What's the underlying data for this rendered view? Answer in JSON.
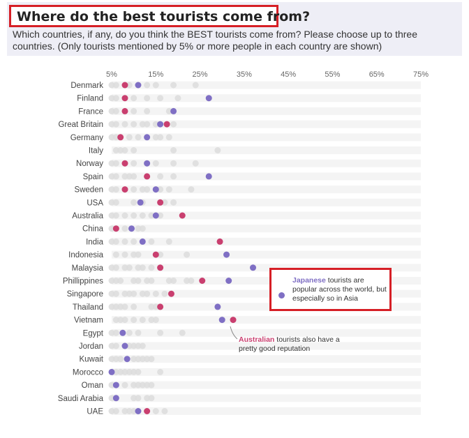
{
  "header": {
    "title": "Where do the best tourists come from?",
    "subtitle": "Which countries, if any, do you think the BEST tourists come from? Please choose up to three countries. (Only tourists mentioned by 5% or more people in each country are shown)"
  },
  "annotations": {
    "japanese": {
      "highlight": "Japanese",
      "text": " tourists are popular across the world, but especially so in Asia"
    },
    "australian": {
      "highlight": "Australian",
      "text": " tourists also have a pretty good reputation"
    }
  },
  "colors": {
    "japanese": "#7f6fc4",
    "australian": "#c93f6f",
    "other": "#dcdcdc",
    "row_band": "#f4f4f4"
  },
  "chart_data": {
    "type": "scatter",
    "orientation": "horizontal",
    "x_ticks": [
      "5%",
      "15%",
      "25%",
      "35%",
      "45%",
      "55%",
      "65%",
      "75%"
    ],
    "xlim": [
      5,
      75
    ],
    "categories": [
      "Denmark",
      "Finland",
      "France",
      "Great Britain",
      "Germany",
      "Italy",
      "Norway",
      "Spain",
      "Sweden",
      "USA",
      "Australia",
      "China",
      "India",
      "Indonesia",
      "Malaysia",
      "Phillippines",
      "Singapore",
      "Thailand",
      "Vietnam",
      "Egypt",
      "Jordan",
      "Kuwait",
      "Morocco",
      "Oman",
      "Saudi Arabia",
      "UAE"
    ],
    "series": [
      {
        "name": "Australian",
        "values": [
          8,
          8,
          8,
          17.5,
          7,
          null,
          8,
          13,
          8,
          16,
          21,
          6,
          29.5,
          15,
          16,
          25.5,
          18.5,
          16,
          32.5,
          null,
          null,
          null,
          null,
          null,
          null,
          13
        ]
      },
      {
        "name": "Japanese",
        "values": [
          11,
          27,
          19,
          16,
          13,
          null,
          13,
          27,
          15,
          11.5,
          15,
          9.5,
          12,
          31,
          37,
          31.5,
          null,
          29,
          30,
          7.5,
          8,
          8.5,
          5,
          6,
          6,
          11
        ]
      }
    ],
    "others": [
      [
        5,
        6,
        9,
        13,
        15,
        19,
        24
      ],
      [
        5,
        6,
        10,
        13,
        16,
        20
      ],
      [
        5,
        6,
        10,
        13,
        18
      ],
      [
        5,
        6,
        8,
        10,
        12,
        13,
        15,
        19
      ],
      [
        5,
        6,
        9,
        11,
        15,
        16,
        18
      ],
      [
        6,
        7,
        8,
        10,
        19,
        29
      ],
      [
        5,
        6,
        10,
        15,
        19,
        24
      ],
      [
        5,
        6,
        8,
        9,
        10,
        16,
        19
      ],
      [
        5,
        6,
        10,
        12,
        13,
        16,
        18,
        23
      ],
      [
        5,
        6,
        10,
        12,
        17,
        19
      ],
      [
        5,
        6,
        8,
        10,
        12,
        14,
        16
      ],
      [
        5,
        6,
        8,
        11,
        12
      ],
      [
        5,
        6,
        8,
        10,
        14,
        18
      ],
      [
        6,
        8,
        10,
        11,
        16,
        22
      ],
      [
        5,
        6,
        8,
        9,
        11,
        12,
        14
      ],
      [
        5,
        6,
        7,
        10,
        11,
        13,
        14,
        18,
        19,
        22,
        23
      ],
      [
        5,
        6,
        8,
        9,
        10,
        12,
        13,
        15,
        17
      ],
      [
        5,
        6,
        7,
        8,
        10,
        14,
        15
      ],
      [
        6,
        7,
        8,
        10,
        12,
        14,
        15
      ],
      [
        5,
        6,
        9,
        11,
        16,
        21
      ],
      [
        5,
        6,
        8,
        9,
        10,
        11,
        12
      ],
      [
        5,
        6,
        7,
        10,
        11,
        12,
        13,
        14
      ],
      [
        6,
        7,
        8,
        9,
        10,
        11,
        16
      ],
      [
        5,
        8,
        10,
        11,
        12,
        13,
        14
      ],
      [
        5,
        6,
        10,
        11,
        13,
        14
      ],
      [
        5,
        6,
        8,
        9,
        10,
        15,
        17
      ]
    ]
  }
}
